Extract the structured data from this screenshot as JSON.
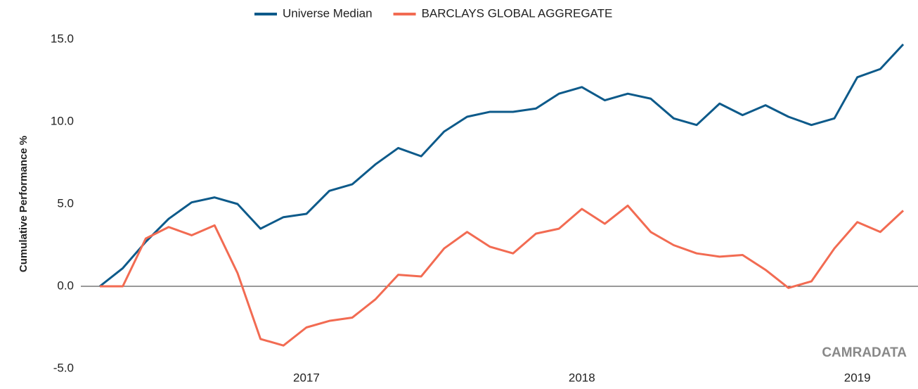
{
  "chart_data": {
    "type": "line",
    "y_label": "Cumulative Performance %",
    "watermark": "CAMRADATA",
    "categories": [
      null,
      null,
      null,
      null,
      null,
      null,
      null,
      null,
      null,
      "2017",
      null,
      null,
      null,
      null,
      null,
      null,
      null,
      null,
      null,
      null,
      null,
      "2018",
      null,
      null,
      null,
      null,
      null,
      null,
      null,
      null,
      null,
      null,
      null,
      "2019",
      null,
      null
    ],
    "series": [
      {
        "name": "Universe Median",
        "color": "#0d5a8a",
        "values": [
          0.0,
          1.1,
          2.7,
          4.1,
          5.1,
          5.4,
          5.0,
          3.5,
          4.2,
          4.4,
          5.8,
          6.2,
          7.4,
          8.4,
          7.9,
          9.4,
          10.3,
          10.6,
          10.6,
          10.8,
          11.7,
          12.1,
          11.3,
          11.7,
          11.4,
          10.2,
          9.8,
          11.1,
          10.4,
          11.0,
          10.3,
          9.8,
          10.2,
          12.7,
          13.2,
          14.7
        ]
      },
      {
        "name": "BARCLAYS GLOBAL AGGREGATE",
        "color": "#f26b52",
        "values": [
          0.0,
          0.0,
          2.9,
          3.6,
          3.1,
          3.7,
          0.8,
          -3.2,
          -3.6,
          -2.5,
          -2.1,
          -1.9,
          -0.8,
          0.7,
          0.6,
          2.3,
          3.3,
          2.4,
          2.0,
          3.2,
          3.5,
          4.7,
          3.8,
          4.9,
          3.3,
          2.5,
          2.0,
          1.8,
          1.9,
          1.0,
          -0.1,
          0.3,
          2.3,
          3.9,
          3.3,
          4.6
        ]
      }
    ],
    "ylim": [
      -5,
      15
    ],
    "yticks": [
      {
        "value": -5,
        "label": "-5.0"
      },
      {
        "value": 0,
        "label": "0.0"
      },
      {
        "value": 5,
        "label": "5.0"
      },
      {
        "value": 10,
        "label": "10.0"
      },
      {
        "value": 15,
        "label": "15.0"
      }
    ],
    "legend": "top"
  }
}
